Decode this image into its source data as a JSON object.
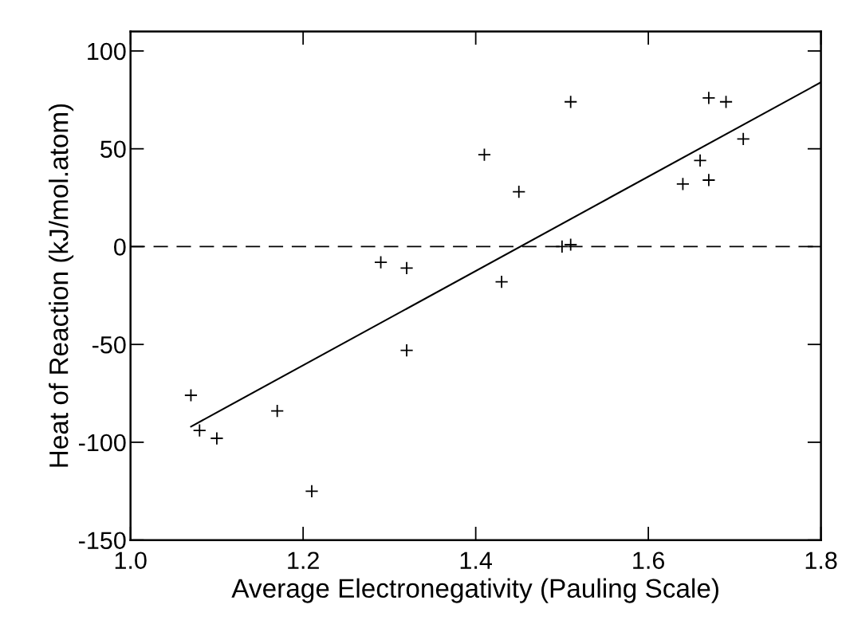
{
  "chart_data": {
    "type": "scatter",
    "xlabel": "Average Electronegativity (Pauling Scale)",
    "ylabel": "Heat of Reaction (kJ/mol.atom)",
    "xlim": [
      1.0,
      1.8
    ],
    "xticks": [
      {
        "value": 1.0,
        "label": "1.0"
      },
      1.2,
      1.4,
      1.6,
      {
        "value": 1.8,
        "label": "1.8"
      }
    ],
    "ylim": [
      -150,
      110
    ],
    "yticks": [
      -150,
      -100,
      -50,
      0,
      50,
      100
    ],
    "grid": false,
    "legend": false,
    "marker": "cross",
    "series": [
      {
        "color": "#000000",
        "x": [
          1.07,
          1.08,
          1.1,
          1.17,
          1.21,
          1.29,
          1.32,
          1.32,
          1.41,
          1.43,
          1.45,
          1.5,
          1.51,
          1.51,
          1.64,
          1.66,
          1.67,
          1.67,
          1.69,
          1.71
        ],
        "values": [
          -76,
          -94,
          -98,
          -84,
          -125,
          -8,
          -11,
          -53,
          47,
          -18,
          28,
          0,
          1,
          74,
          32,
          44,
          76,
          34,
          74,
          55
        ]
      },
      {
        "type": "line",
        "marker": "none",
        "color": "#000000",
        "line_style": "solid",
        "x": [
          1.07,
          1.8
        ],
        "values": [
          -92,
          84
        ]
      }
    ],
    "ref_lines": [
      {
        "axis": "y",
        "value": 0,
        "color": "#000000",
        "line_style": "dashed"
      }
    ]
  }
}
